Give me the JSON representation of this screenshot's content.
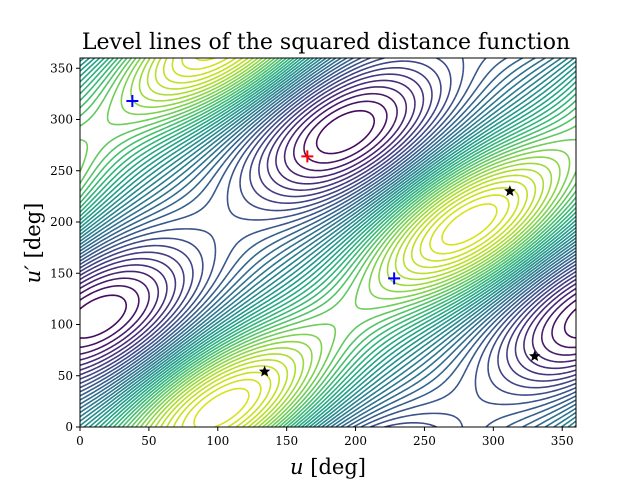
{
  "chart_data": {
    "type": "contour",
    "title": "Level lines of the squared distance function",
    "xlabel_var": "u",
    "xlabel_unit": "[deg]",
    "ylabel_var": "u′",
    "ylabel_unit": "[deg]",
    "xlim": [
      0,
      360
    ],
    "ylim": [
      0,
      360
    ],
    "xticks": [
      0,
      50,
      100,
      150,
      200,
      250,
      300,
      350
    ],
    "yticks": [
      0,
      50,
      100,
      150,
      200,
      250,
      300,
      350
    ],
    "grid": false,
    "colormap": "viridis",
    "colors": {
      "low": "#440154",
      "mid": "#21918c",
      "high": "#bddf26",
      "top": "#d8e219"
    },
    "markers": [
      {
        "type": "plus",
        "color": "#ff0000",
        "x": 165,
        "y": 264
      },
      {
        "type": "plus",
        "color": "#0000ff",
        "x": 38,
        "y": 318
      },
      {
        "type": "plus",
        "color": "#0000ff",
        "x": 228,
        "y": 145
      },
      {
        "type": "star",
        "color": "#000000",
        "x": 134,
        "y": 54
      },
      {
        "type": "star",
        "color": "#000000",
        "x": 312,
        "y": 230
      },
      {
        "type": "star",
        "color": "#000000",
        "x": 330,
        "y": 69
      }
    ]
  }
}
